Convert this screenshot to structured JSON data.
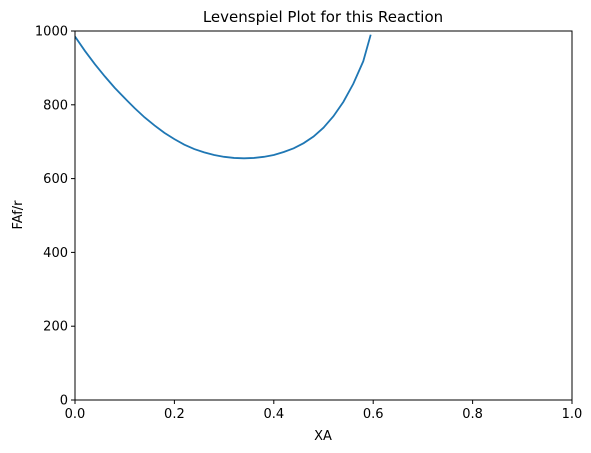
{
  "chart_data": {
    "type": "line",
    "title": "Levenspiel Plot for this Reaction",
    "xlabel": "XA",
    "ylabel": "FAf/r",
    "xlim": [
      0,
      1
    ],
    "ylim": [
      0,
      1000
    ],
    "xticks": [
      0,
      0.2,
      0.4,
      0.6,
      0.8,
      1
    ],
    "xtick_labels": [
      "0.0",
      "0.2",
      "0.4",
      "0.6",
      "0.8",
      "1.0"
    ],
    "yticks": [
      0,
      200,
      400,
      600,
      800,
      1000
    ],
    "ytick_labels": [
      "0",
      "200",
      "400",
      "600",
      "800",
      "1000"
    ],
    "grid": false,
    "series": [
      {
        "color": "#1f77b4",
        "x": [
          0.0,
          0.02,
          0.04,
          0.06,
          0.08,
          0.1,
          0.12,
          0.14,
          0.16,
          0.18,
          0.2,
          0.22,
          0.24,
          0.26,
          0.28,
          0.3,
          0.32,
          0.34,
          0.36,
          0.38,
          0.4,
          0.42,
          0.44,
          0.46,
          0.48,
          0.5,
          0.52,
          0.54,
          0.56,
          0.58,
          0.595
        ],
        "y": [
          985,
          946,
          910,
          877,
          846,
          818,
          791,
          766,
          744,
          724,
          707,
          692,
          680,
          671,
          664,
          659,
          656,
          655,
          656,
          659,
          664,
          672,
          682,
          696,
          714,
          738,
          769,
          808,
          857,
          918,
          990
        ]
      }
    ]
  }
}
